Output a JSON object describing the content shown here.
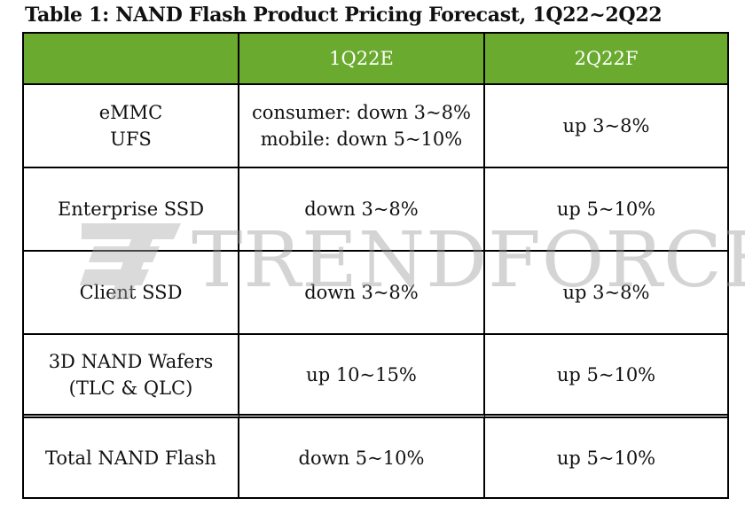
{
  "title": "Table 1: NAND Flash Product Pricing Forecast, 1Q22~2Q22",
  "watermark": {
    "text": "TRENDFORCE",
    "color": "#9a9a9a"
  },
  "colors": {
    "header_bg": "#6aaa2e",
    "header_text": "#ffffff"
  },
  "table": {
    "headers": [
      "",
      "1Q22E",
      "2Q22F"
    ],
    "rows": [
      {
        "product": [
          "eMMC",
          "UFS"
        ],
        "q1": [
          "consumer: down 3~8%",
          "mobile: down 5~10%"
        ],
        "q2": "up 3~8%"
      },
      {
        "product": [
          "Enterprise SSD"
        ],
        "q1": [
          "down 3~8%"
        ],
        "q2": "up 5~10%"
      },
      {
        "product": [
          "Client SSD"
        ],
        "q1": [
          "down 3~8%"
        ],
        "q2": "up 3~8%"
      },
      {
        "product": [
          "3D NAND Wafers",
          "(TLC & QLC)"
        ],
        "q1": [
          "up 10~15%"
        ],
        "q2": "up 5~10%"
      },
      {
        "product": [
          "Total NAND Flash"
        ],
        "q1": [
          "down 5~10%"
        ],
        "q2": "up 5~10%"
      }
    ]
  }
}
